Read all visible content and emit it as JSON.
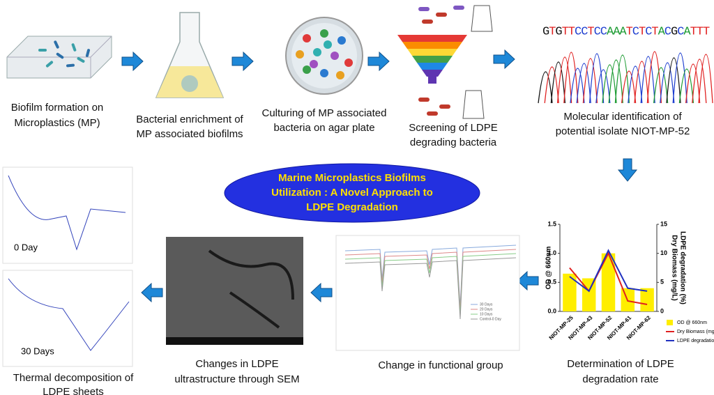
{
  "steps": [
    {
      "caption": [
        "Biofilm formation on",
        "Microplastics (MP)"
      ]
    },
    {
      "caption": [
        "Bacterial enrichment of",
        "MP associated biofilms"
      ]
    },
    {
      "caption": [
        "Culturing of MP associated",
        "bacteria on agar plate"
      ]
    },
    {
      "caption": [
        "Screening of LDPE",
        "degrading bacteria"
      ]
    },
    {
      "caption": [
        "Molecular identification of",
        "potential isolate NIOT-MP-52"
      ]
    }
  ],
  "dna_sequence": "GTGTTCCTCCAAATCTCTACGCATTT",
  "center_title": [
    "Marine Microplastics Biofilms",
    "Utilization : A Novel Approach to",
    "LDPE Degradation"
  ],
  "degradation_chart": {
    "type": "bar",
    "caption": [
      "Determination of LDPE",
      "degradation rate"
    ],
    "y_label": "OD @ 660nm",
    "y2_label": [
      "Dry Biomass (mg/L)",
      "LDPE degradation (%)"
    ],
    "categories": [
      "NIOT-MP-25",
      "NIOT-MP-43",
      "NIOT-MP-52",
      "NIOT-MP-61",
      "NIOT-MP-62"
    ],
    "series": [
      {
        "name": "OD @ 660nm",
        "color": "#ffee00",
        "values": [
          0.65,
          0.57,
          1.0,
          0.4,
          0.4
        ]
      },
      {
        "name": "Dry Biomass (mg/L)",
        "color": "#e02020",
        "axis": "y2",
        "values": [
          7.5,
          3.5,
          10,
          1.8,
          1.2
        ]
      },
      {
        "name": "LDPE degradation (%)",
        "color": "#2030c0",
        "axis": "y2",
        "values": [
          6,
          3.5,
          10.5,
          4,
          3.5
        ]
      }
    ],
    "ylim": [
      0,
      1.5
    ],
    "yticks": [
      {
        "value": 0,
        "label": "0.0"
      },
      {
        "value": 0.5,
        "label": "0.5"
      },
      {
        "value": 1,
        "label": "1.0"
      },
      {
        "value": 1.5,
        "label": "1.5"
      }
    ],
    "y2lim": [
      0,
      15
    ],
    "y2ticks": [
      0,
      5,
      10,
      15
    ]
  },
  "ftir": {
    "caption": "Change in functional group",
    "legend": [
      "30 Days",
      "20 Days",
      "10 Days",
      "Control-0 Day"
    ]
  },
  "sem": {
    "caption": [
      "Changes in LDPE",
      "ultrastructure through SEM"
    ]
  },
  "dsc": {
    "caption": [
      "Thermal decomposition of",
      "LDPE sheets"
    ],
    "labels": [
      "0 Day",
      "30 Days"
    ]
  }
}
